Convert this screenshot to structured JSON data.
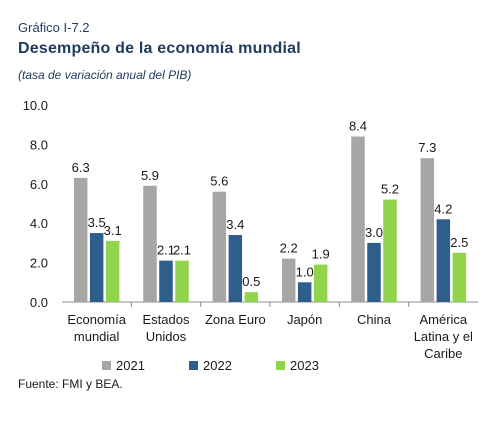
{
  "header": {
    "kicker": "Gráfico I-7.2",
    "title": "Desempeño de la economía mundial",
    "subtitle": "(tasa de variación anual del PIB)"
  },
  "source": "Fuente: FMI y BEA.",
  "chart_data": {
    "type": "bar",
    "categories": [
      [
        "Economía",
        "mundial"
      ],
      [
        "Estados",
        "Unidos"
      ],
      [
        "Zona Euro"
      ],
      [
        "Japón"
      ],
      [
        "China"
      ],
      [
        "América",
        "Latina y el",
        "Caribe"
      ]
    ],
    "series": [
      {
        "name": "2021",
        "color": "#a6a6a6",
        "values": [
          6.3,
          5.9,
          5.6,
          2.2,
          8.4,
          7.3
        ]
      },
      {
        "name": "2022",
        "color": "#2e5e8c",
        "values": [
          3.5,
          2.1,
          3.4,
          1.0,
          3.0,
          4.2
        ]
      },
      {
        "name": "2023",
        "color": "#8fd44b",
        "values": [
          3.1,
          2.1,
          0.5,
          1.9,
          5.2,
          2.5
        ]
      }
    ],
    "data_labels": [
      [
        "6.3",
        "5.9",
        "5.6",
        "2.2",
        "8.4",
        "7.3"
      ],
      [
        "3.5",
        "2.1",
        "3.4",
        "1.0",
        "3.0",
        "4.2"
      ],
      [
        "3.1",
        "2.1",
        "0.5",
        "1.9",
        "5.2",
        "2.5"
      ]
    ],
    "ylim": [
      0,
      10
    ],
    "yticks": [
      "0.0",
      "2.0",
      "4.0",
      "6.0",
      "8.0",
      "10.0"
    ],
    "grid": false,
    "legend": "bottom"
  }
}
